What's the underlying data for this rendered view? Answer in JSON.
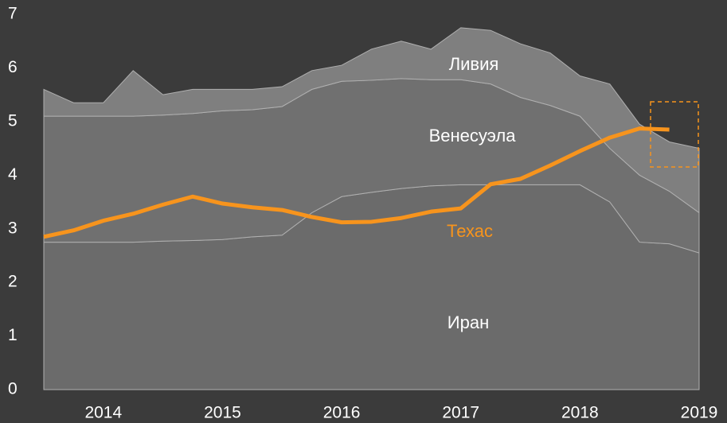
{
  "chart_data": {
    "type": "stacked_area",
    "x": [
      2013.5,
      2013.75,
      2014,
      2014.25,
      2014.5,
      2014.75,
      2015,
      2015.25,
      2015.5,
      2015.75,
      2016,
      2016.25,
      2016.5,
      2016.75,
      2017,
      2017.25,
      2017.5,
      2017.75,
      2018,
      2018.25,
      2018.5,
      2018.75,
      2019
    ],
    "series": [
      {
        "name": "Иран",
        "color": "#6b6b6b",
        "values": [
          2.75,
          2.75,
          2.75,
          2.75,
          2.77,
          2.78,
          2.8,
          2.85,
          2.88,
          3.3,
          3.6,
          3.68,
          3.75,
          3.8,
          3.82,
          3.82,
          3.82,
          3.82,
          3.82,
          3.5,
          2.75,
          2.72,
          2.55
        ]
      },
      {
        "name": "Венесуэла",
        "color": "#707070",
        "values": [
          2.35,
          2.35,
          2.35,
          2.35,
          2.35,
          2.37,
          2.4,
          2.37,
          2.4,
          2.3,
          2.15,
          2.09,
          2.05,
          1.98,
          1.96,
          1.88,
          1.63,
          1.48,
          1.28,
          1.0,
          1.25,
          0.98,
          0.75
        ]
      },
      {
        "name": "Ливия",
        "color": "#7f7f7f",
        "values": [
          0.5,
          0.25,
          0.25,
          0.85,
          0.38,
          0.45,
          0.4,
          0.38,
          0.37,
          0.35,
          0.3,
          0.58,
          0.7,
          0.57,
          0.97,
          1.0,
          1.0,
          0.98,
          0.75,
          1.2,
          0.95,
          0.92,
          1.2
        ]
      },
      {
        "name": "Техас",
        "type": "line",
        "color": "#f7941d",
        "values": [
          2.85,
          2.97,
          3.15,
          3.28,
          3.45,
          3.6,
          3.47,
          3.4,
          3.35,
          3.22,
          3.12,
          3.13,
          3.2,
          3.32,
          3.38,
          3.83,
          3.93,
          4.18,
          4.45,
          4.7,
          4.87,
          4.85,
          null
        ]
      }
    ],
    "xlim": [
      2013.5,
      2019
    ],
    "xticks": [
      2014,
      2015,
      2016,
      2017,
      2018,
      2019
    ],
    "ylim": [
      0,
      7
    ],
    "yticks": [
      0,
      1,
      2,
      3,
      4,
      5,
      6,
      7
    ],
    "grid": false
  }
}
